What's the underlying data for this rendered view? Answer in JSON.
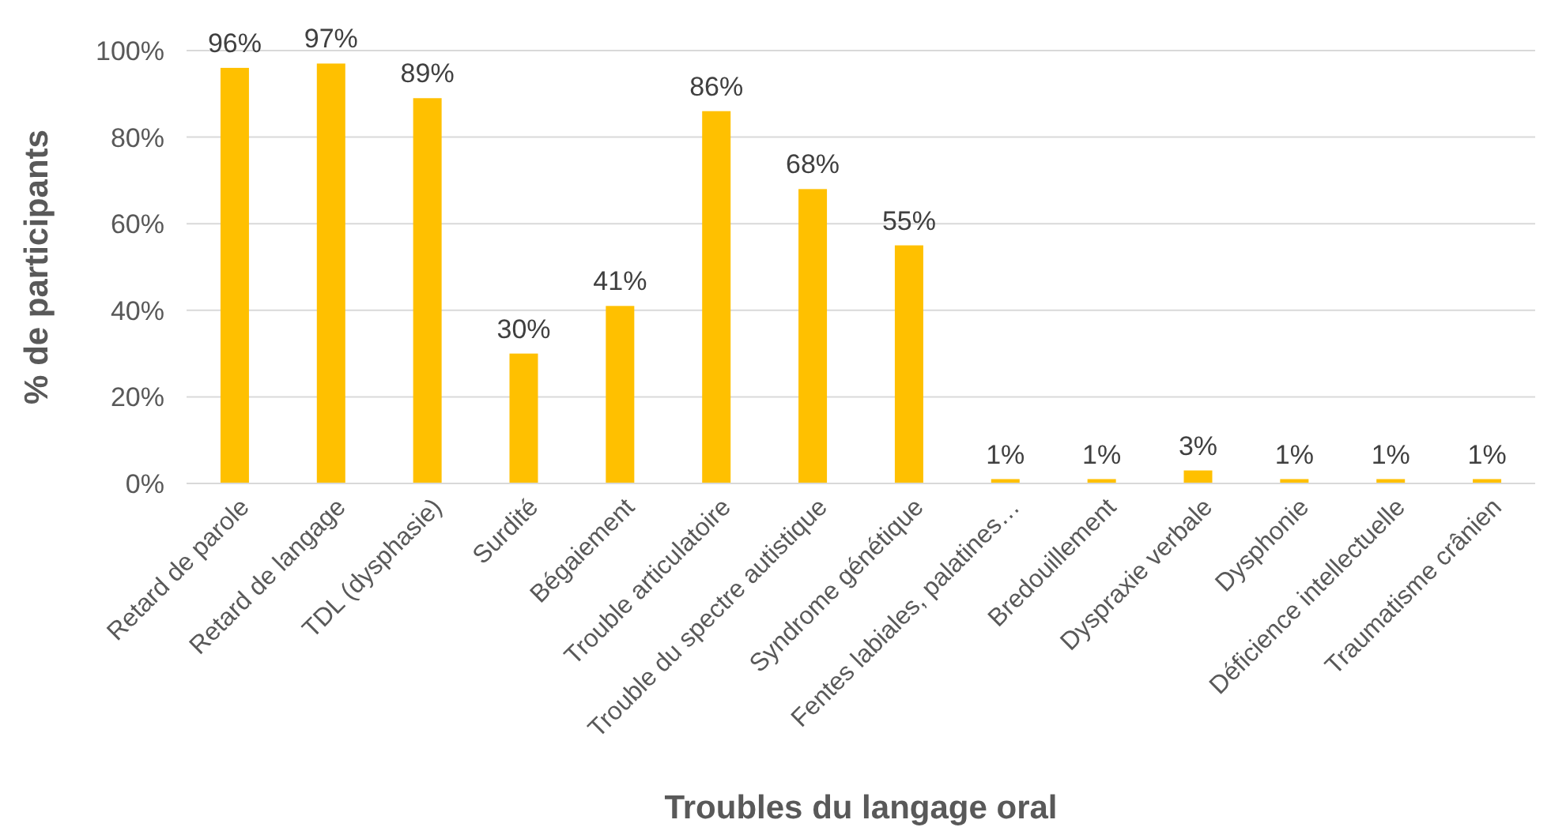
{
  "chart_data": {
    "type": "bar",
    "xlabel": "Troubles du langage oral",
    "ylabel": "% de participants",
    "categories": [
      "Retard de parole",
      "Retard de langage",
      "TDL (dysphasie)",
      "Surdité",
      "Bégaiement",
      "Trouble articulatoire",
      "Trouble du spectre autistique",
      "Syndrome génétique",
      "Fentes labiales, palatines…",
      "Bredouillement",
      "Dyspraxie verbale",
      "Dysphonie",
      "Déficience intellectuelle",
      "Traumatisme crânien"
    ],
    "values": [
      96,
      97,
      89,
      30,
      41,
      86,
      68,
      55,
      1,
      1,
      3,
      1,
      1,
      1
    ],
    "value_labels": [
      "96%",
      "97%",
      "89%",
      "30%",
      "41%",
      "86%",
      "68%",
      "55%",
      "1%",
      "1%",
      "3%",
      "1%",
      "1%",
      "1%"
    ],
    "color": "#ffc000",
    "ylim": [
      0,
      100
    ],
    "yticks": [
      {
        "value": 0,
        "label": "0%"
      },
      {
        "value": 20,
        "label": "20%"
      },
      {
        "value": 40,
        "label": "40%"
      },
      {
        "value": 60,
        "label": "60%"
      },
      {
        "value": 80,
        "label": "80%"
      },
      {
        "value": 100,
        "label": "100%"
      }
    ],
    "grid": "y"
  }
}
